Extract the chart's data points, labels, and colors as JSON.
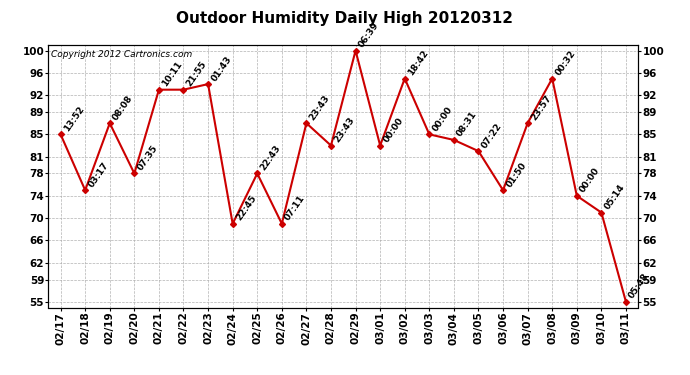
{
  "title": "Outdoor Humidity Daily High 20120312",
  "copyright": "Copyright 2012 Cartronics.com",
  "dates": [
    "02/17",
    "02/18",
    "02/19",
    "02/20",
    "02/21",
    "02/22",
    "02/23",
    "02/24",
    "02/25",
    "02/26",
    "02/27",
    "02/28",
    "02/29",
    "03/01",
    "03/02",
    "03/03",
    "03/04",
    "03/05",
    "03/06",
    "03/07",
    "03/08",
    "03/09",
    "03/10",
    "03/11"
  ],
  "values": [
    85,
    75,
    87,
    78,
    93,
    93,
    94,
    69,
    78,
    69,
    87,
    83,
    100,
    83,
    95,
    85,
    84,
    82,
    75,
    87,
    95,
    74,
    71,
    55
  ],
  "labels": [
    "13:52",
    "03:17",
    "08:08",
    "07:35",
    "10:11",
    "21:55",
    "01:43",
    "22:45",
    "22:43",
    "07:11",
    "23:43",
    "23:43",
    "06:39",
    "00:00",
    "18:42",
    "00:00",
    "08:31",
    "07:22",
    "01:50",
    "23:57",
    "00:32",
    "00:00",
    "05:14",
    "05:48"
  ],
  "ylim_min": 54,
  "ylim_max": 101,
  "yticks": [
    55,
    59,
    62,
    66,
    70,
    74,
    78,
    81,
    85,
    89,
    92,
    96,
    100
  ],
  "line_color": "#cc0000",
  "marker_color": "#cc0000",
  "bg_color": "#ffffff",
  "grid_color": "#aaaaaa",
  "title_fontsize": 11,
  "label_fontsize": 6.5,
  "copyright_fontsize": 6.5,
  "tick_fontsize": 7.5
}
